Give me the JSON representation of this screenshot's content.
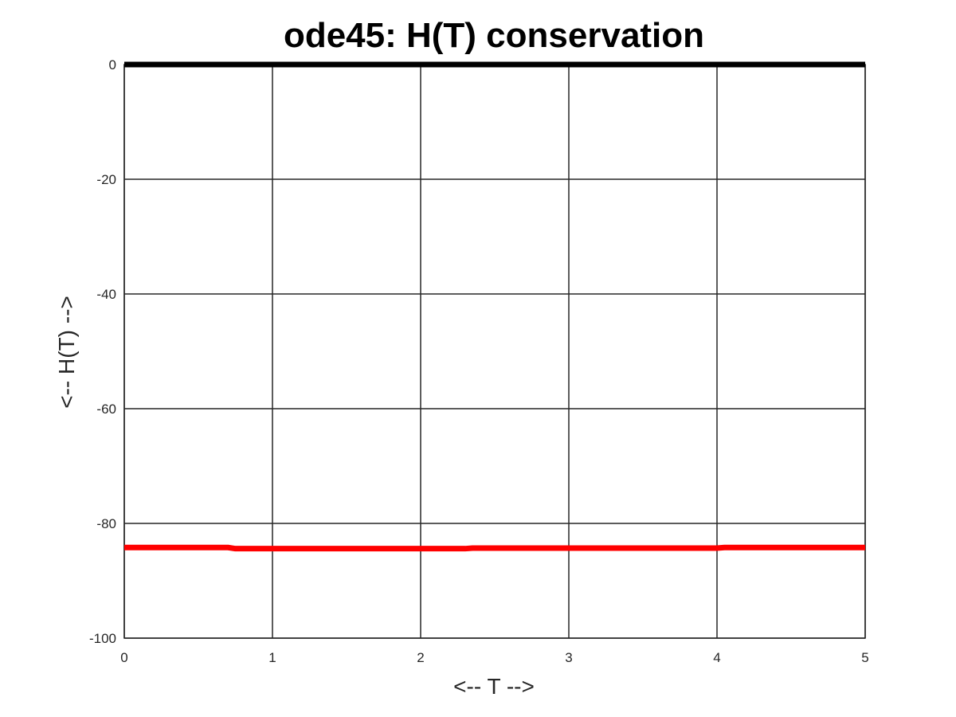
{
  "chart_data": {
    "type": "line",
    "title": "ode45: H(T) conservation",
    "xlabel": "<-- T -->",
    "ylabel": "<-- H(T) -->",
    "xlim": [
      0,
      5
    ],
    "ylim": [
      -100,
      0
    ],
    "xticks": [
      "0",
      "1",
      "2",
      "3",
      "4",
      "5"
    ],
    "yticks": [
      "0",
      "-20",
      "-40",
      "-60",
      "-80",
      "-100"
    ],
    "grid": true,
    "series": [
      {
        "color": "#000000",
        "x": [
          0,
          1,
          2,
          3,
          4,
          5
        ],
        "y": [
          0,
          0,
          0,
          0,
          0,
          0
        ]
      },
      {
        "color": "#ff0000",
        "x": [
          0,
          0.7,
          0.75,
          1,
          1.5,
          2,
          2.3,
          2.35,
          2.5,
          3,
          3.5,
          4,
          4.05,
          4.5,
          5
        ],
        "y": [
          -84.2,
          -84.2,
          -84.4,
          -84.4,
          -84.4,
          -84.4,
          -84.4,
          -84.3,
          -84.3,
          -84.3,
          -84.3,
          -84.3,
          -84.2,
          -84.2,
          -84.2
        ]
      }
    ]
  }
}
